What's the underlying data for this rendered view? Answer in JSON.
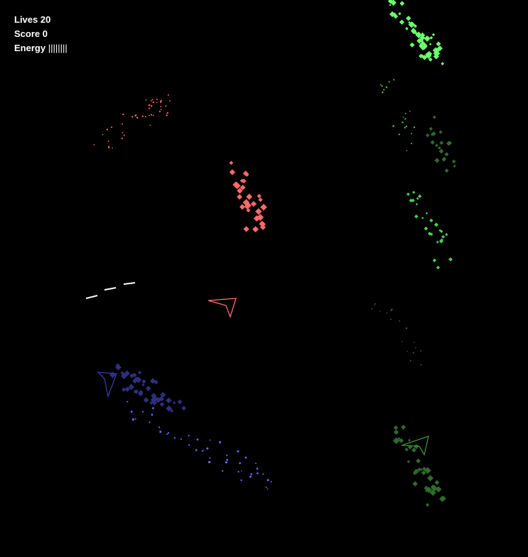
{
  "hud": {
    "lives_label": "Lives",
    "lives_value": "20",
    "score_label": "Score",
    "score_value": "0",
    "energy_label": "Energy",
    "energy_value": "||||||||"
  },
  "colors": {
    "background": "#000000",
    "player_ship": "#ff6f6f",
    "enemy_blue": "#5a5aff",
    "enemy_green": "#3d8f3d",
    "particles_green_bright": "#6dff6d",
    "particles_green_dark": "#2e6b2e",
    "particles_red": "#ff6a6a",
    "particles_blue": "#6a6aff",
    "bullet": "#ffffff"
  }
}
